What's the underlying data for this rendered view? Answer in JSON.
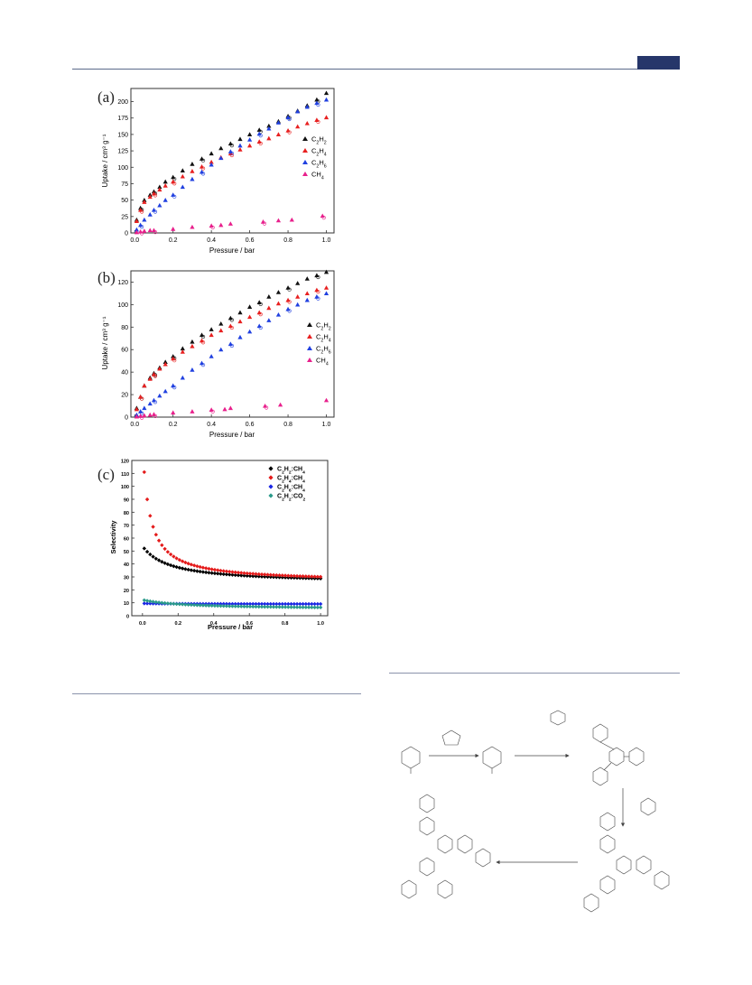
{
  "page": {
    "panel_labels": [
      "(a)",
      "(b)",
      "(c)"
    ]
  },
  "chart_data": [
    {
      "type": "scatter",
      "panel": "(a)",
      "xlabel": "Pressure / bar",
      "ylabel": "Uptake / cm³ g⁻¹",
      "xlim": [
        -0.02,
        1.04
      ],
      "ylim": [
        0,
        220
      ],
      "xticks": [
        "0.0",
        "0.2",
        "0.4",
        "0.6",
        "0.8",
        "1.0"
      ],
      "yticks": [
        "0",
        "25",
        "50",
        "75",
        "100",
        "125",
        "150",
        "175",
        "200"
      ],
      "legend": "right",
      "series": [
        {
          "name": "C2H2",
          "color": "#111111",
          "x": [
            0.01,
            0.03,
            0.05,
            0.08,
            0.1,
            0.13,
            0.16,
            0.2,
            0.25,
            0.3,
            0.35,
            0.4,
            0.45,
            0.5,
            0.55,
            0.6,
            0.65,
            0.7,
            0.75,
            0.8,
            0.85,
            0.9,
            0.95,
            1.0
          ],
          "y": [
            20,
            38,
            50,
            58,
            63,
            70,
            78,
            85,
            95,
            105,
            113,
            121,
            129,
            136,
            143,
            150,
            157,
            163,
            170,
            178,
            186,
            194,
            203,
            213
          ]
        },
        {
          "name": "C2H4",
          "color": "#e82020",
          "x": [
            0.01,
            0.03,
            0.05,
            0.08,
            0.1,
            0.13,
            0.16,
            0.2,
            0.25,
            0.3,
            0.35,
            0.4,
            0.45,
            0.5,
            0.55,
            0.6,
            0.65,
            0.7,
            0.75,
            0.8,
            0.85,
            0.9,
            0.95,
            1.0
          ],
          "y": [
            18,
            35,
            47,
            55,
            60,
            66,
            72,
            78,
            86,
            94,
            101,
            108,
            115,
            121,
            127,
            133,
            139,
            144,
            150,
            156,
            162,
            167,
            172,
            176
          ]
        },
        {
          "name": "C2H6",
          "color": "#2040e0",
          "x": [
            0.01,
            0.03,
            0.05,
            0.08,
            0.1,
            0.13,
            0.16,
            0.2,
            0.25,
            0.3,
            0.35,
            0.4,
            0.45,
            0.5,
            0.55,
            0.6,
            0.65,
            0.7,
            0.75,
            0.8,
            0.85,
            0.9,
            0.95,
            1.0
          ],
          "y": [
            5,
            12,
            20,
            28,
            35,
            42,
            50,
            58,
            70,
            82,
            93,
            104,
            114,
            124,
            133,
            142,
            151,
            159,
            168,
            176,
            185,
            192,
            198,
            203
          ]
        },
        {
          "name": "CH4",
          "color": "#e8208c",
          "x": [
            0.01,
            0.03,
            0.05,
            0.08,
            0.1,
            0.2,
            0.3,
            0.4,
            0.45,
            0.5,
            0.67,
            0.75,
            0.82,
            0.98
          ],
          "y": [
            1,
            2,
            3,
            4,
            4,
            6,
            9,
            11,
            12,
            14,
            17,
            19,
            20,
            26
          ]
        }
      ]
    },
    {
      "type": "scatter",
      "panel": "(b)",
      "xlabel": "Pressure / bar",
      "ylabel": "Uptake / cm³ g⁻¹",
      "xlim": [
        -0.02,
        1.04
      ],
      "ylim": [
        0,
        130
      ],
      "xticks": [
        "0.0",
        "0.2",
        "0.4",
        "0.6",
        "0.8",
        "1.0"
      ],
      "yticks": [
        "0",
        "20",
        "40",
        "60",
        "80",
        "100",
        "120"
      ],
      "legend": "right",
      "series": [
        {
          "name": "C2H2",
          "color": "#111111",
          "x": [
            0.01,
            0.03,
            0.05,
            0.08,
            0.1,
            0.13,
            0.16,
            0.2,
            0.25,
            0.3,
            0.35,
            0.4,
            0.45,
            0.5,
            0.55,
            0.6,
            0.65,
            0.7,
            0.75,
            0.8,
            0.85,
            0.9,
            0.95,
            1.0
          ],
          "y": [
            8,
            18,
            28,
            35,
            39,
            44,
            49,
            54,
            61,
            67,
            73,
            78,
            83,
            88,
            93,
            98,
            102,
            107,
            111,
            115,
            119,
            123,
            126,
            129
          ]
        },
        {
          "name": "C2H4",
          "color": "#e82020",
          "x": [
            0.01,
            0.03,
            0.05,
            0.08,
            0.1,
            0.13,
            0.16,
            0.2,
            0.25,
            0.3,
            0.35,
            0.4,
            0.45,
            0.5,
            0.55,
            0.6,
            0.65,
            0.7,
            0.75,
            0.8,
            0.85,
            0.9,
            0.95,
            1.0
          ],
          "y": [
            7,
            18,
            28,
            34,
            38,
            43,
            47,
            52,
            58,
            63,
            68,
            73,
            77,
            81,
            85,
            89,
            93,
            97,
            101,
            104,
            107,
            110,
            113,
            115
          ]
        },
        {
          "name": "C2H6",
          "color": "#2040e0",
          "x": [
            0.01,
            0.03,
            0.05,
            0.08,
            0.1,
            0.13,
            0.16,
            0.2,
            0.25,
            0.3,
            0.35,
            0.4,
            0.45,
            0.5,
            0.55,
            0.6,
            0.65,
            0.7,
            0.75,
            0.8,
            0.85,
            0.9,
            0.95,
            1.0
          ],
          "y": [
            2,
            5,
            8,
            12,
            15,
            19,
            23,
            28,
            35,
            42,
            48,
            54,
            60,
            65,
            71,
            76,
            81,
            86,
            91,
            96,
            100,
            104,
            107,
            110
          ]
        },
        {
          "name": "CH4",
          "color": "#e8208c",
          "x": [
            0.01,
            0.03,
            0.05,
            0.08,
            0.1,
            0.2,
            0.3,
            0.4,
            0.47,
            0.5,
            0.68,
            0.76,
            1.0
          ],
          "y": [
            0.5,
            1,
            1.5,
            2,
            2.5,
            4,
            5,
            6.5,
            7,
            8,
            10,
            11,
            15
          ]
        }
      ]
    },
    {
      "type": "scatter",
      "panel": "(c)",
      "xlabel": "Pressure / bar",
      "ylabel": "Selectivity",
      "xlim": [
        -0.06,
        1.04
      ],
      "ylim": [
        0,
        120
      ],
      "xticks": [
        "0.0",
        "0.2",
        "0.4",
        "0.6",
        "0.8",
        "1.0"
      ],
      "yticks": [
        "0",
        "10",
        "20",
        "30",
        "40",
        "50",
        "60",
        "70",
        "80",
        "90",
        "100",
        "110",
        "120"
      ],
      "legend": "top-right",
      "series": [
        {
          "name": "C2H2:CH4",
          "color": "#000000",
          "formula": "hyperbolic",
          "start": 52,
          "end": 25,
          "k": 0.16
        },
        {
          "name": "C2H4:CH4",
          "color": "#e41a1a",
          "formula": "hyperbolic",
          "start": 111,
          "end": 26,
          "k": 0.05
        },
        {
          "name": "C2H6:CH4",
          "color": "#1a26e4",
          "formula": "hyperbolic",
          "start": 9.5,
          "end": 9,
          "k": 0.2
        },
        {
          "name": "C2H2:CO2",
          "color": "#2a9a8a",
          "formula": "hyperbolic",
          "start": 12,
          "end": 5,
          "k": 0.25
        }
      ]
    }
  ]
}
